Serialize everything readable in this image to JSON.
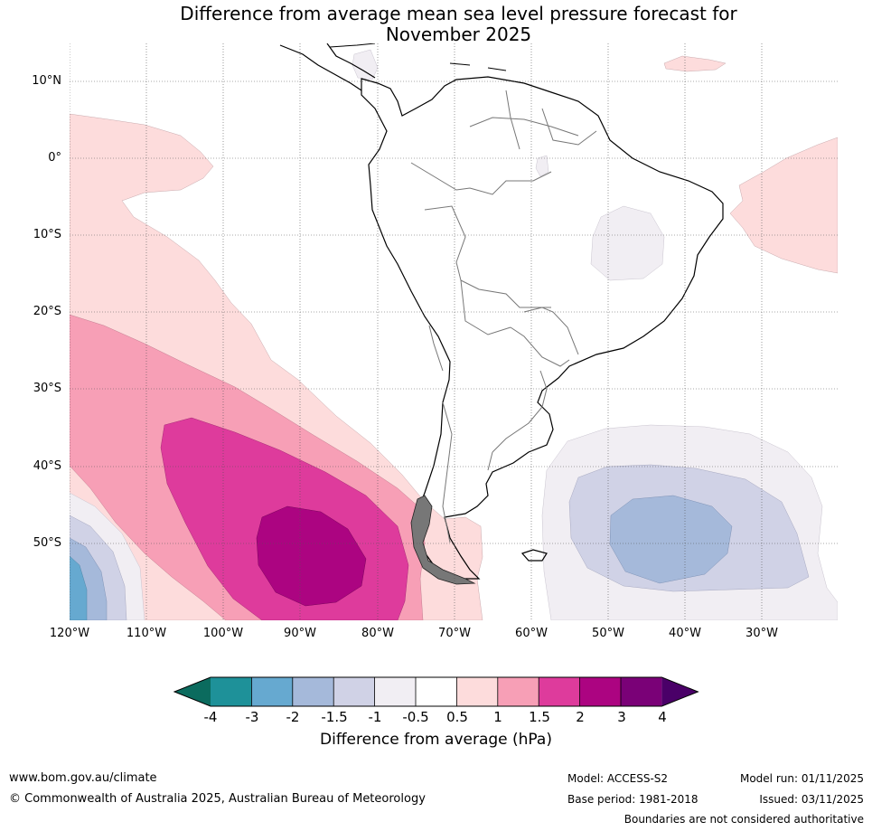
{
  "title": {
    "line1": "Difference from average mean sea level pressure forecast for",
    "line2": "November 2025"
  },
  "map": {
    "region": "South America",
    "lat_labels": [
      "10°N",
      "0°",
      "10°S",
      "20°S",
      "30°S",
      "40°S",
      "50°S"
    ],
    "lon_labels": [
      "120°W",
      "110°W",
      "100°W",
      "90°W",
      "80°W",
      "70°W",
      "60°W",
      "50°W",
      "40°W",
      "30°W"
    ]
  },
  "colorbar": {
    "ticks": [
      "-4",
      "-3",
      "-2",
      "-1.5",
      "-1",
      "-0.5",
      "0.5",
      "1",
      "1.5",
      "2",
      "3",
      "4"
    ],
    "colors": [
      "#0b6b5e",
      "#1e9199",
      "#66a9d0",
      "#a5b9da",
      "#d0d2e6",
      "#f1eef3",
      "#ffffff",
      "#fddcdc",
      "#f79fb6",
      "#de3b9c",
      "#ac0481",
      "#7a0177",
      "#4a0068"
    ],
    "title": "Difference from average (hPa)"
  },
  "footer": {
    "website": "www.bom.gov.au/climate",
    "copyright": "© Commonwealth of Australia 2025, Australian Bureau of Meteorology",
    "model": "Model: ACCESS-S2",
    "base_period": "Base period: 1981-2018",
    "model_run": "Model run: 01/11/2025",
    "issued": "Issued: 03/11/2025",
    "disclaimer": "Boundaries are not considered authoritative"
  }
}
